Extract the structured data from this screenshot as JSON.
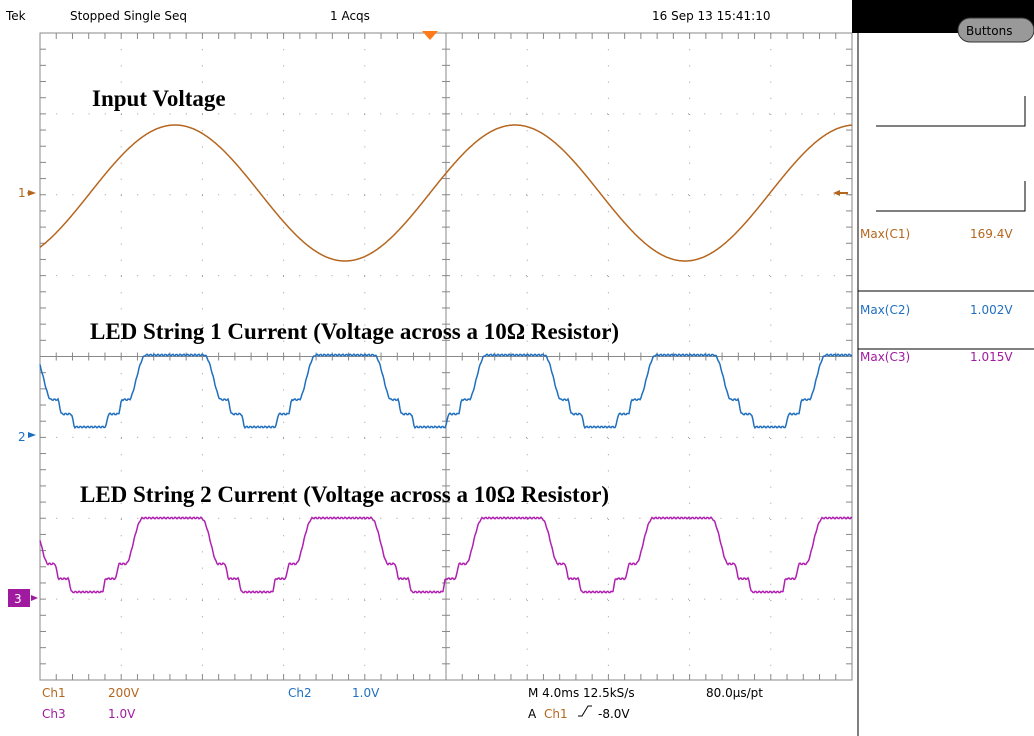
{
  "header": {
    "brand": "Tek",
    "status": "Stopped Single Seq",
    "acquisitions": "1 Acqs",
    "datetime": "16 Sep 13 15:41:10"
  },
  "annotations": [
    "Input Voltage",
    "LED String 1 Current (Voltage across a 10Ω Resistor)",
    "LED String 2 Current (Voltage across a 10Ω Resistor)"
  ],
  "channel_markers": [
    "1",
    "2",
    "3"
  ],
  "side_panel": {
    "button": "Buttons",
    "measurements": [
      {
        "label": "Max(C1)",
        "value": "169.4V"
      },
      {
        "label": "Max(C2)",
        "value": "1.002V"
      },
      {
        "label": "Max(C3)",
        "value": "1.015V"
      }
    ]
  },
  "footer": {
    "ch1": {
      "name": "Ch1",
      "scale": "200V"
    },
    "ch3": {
      "name": "Ch3",
      "scale": "1.0V"
    },
    "ch2": {
      "name": "Ch2",
      "scale": "1.0V"
    },
    "timebase": "M 4.0ms 12.5kS/s",
    "record": "80.0µs/pt",
    "trigger": {
      "mode": "A",
      "source": "Ch1",
      "level": "-8.0V"
    }
  }
}
